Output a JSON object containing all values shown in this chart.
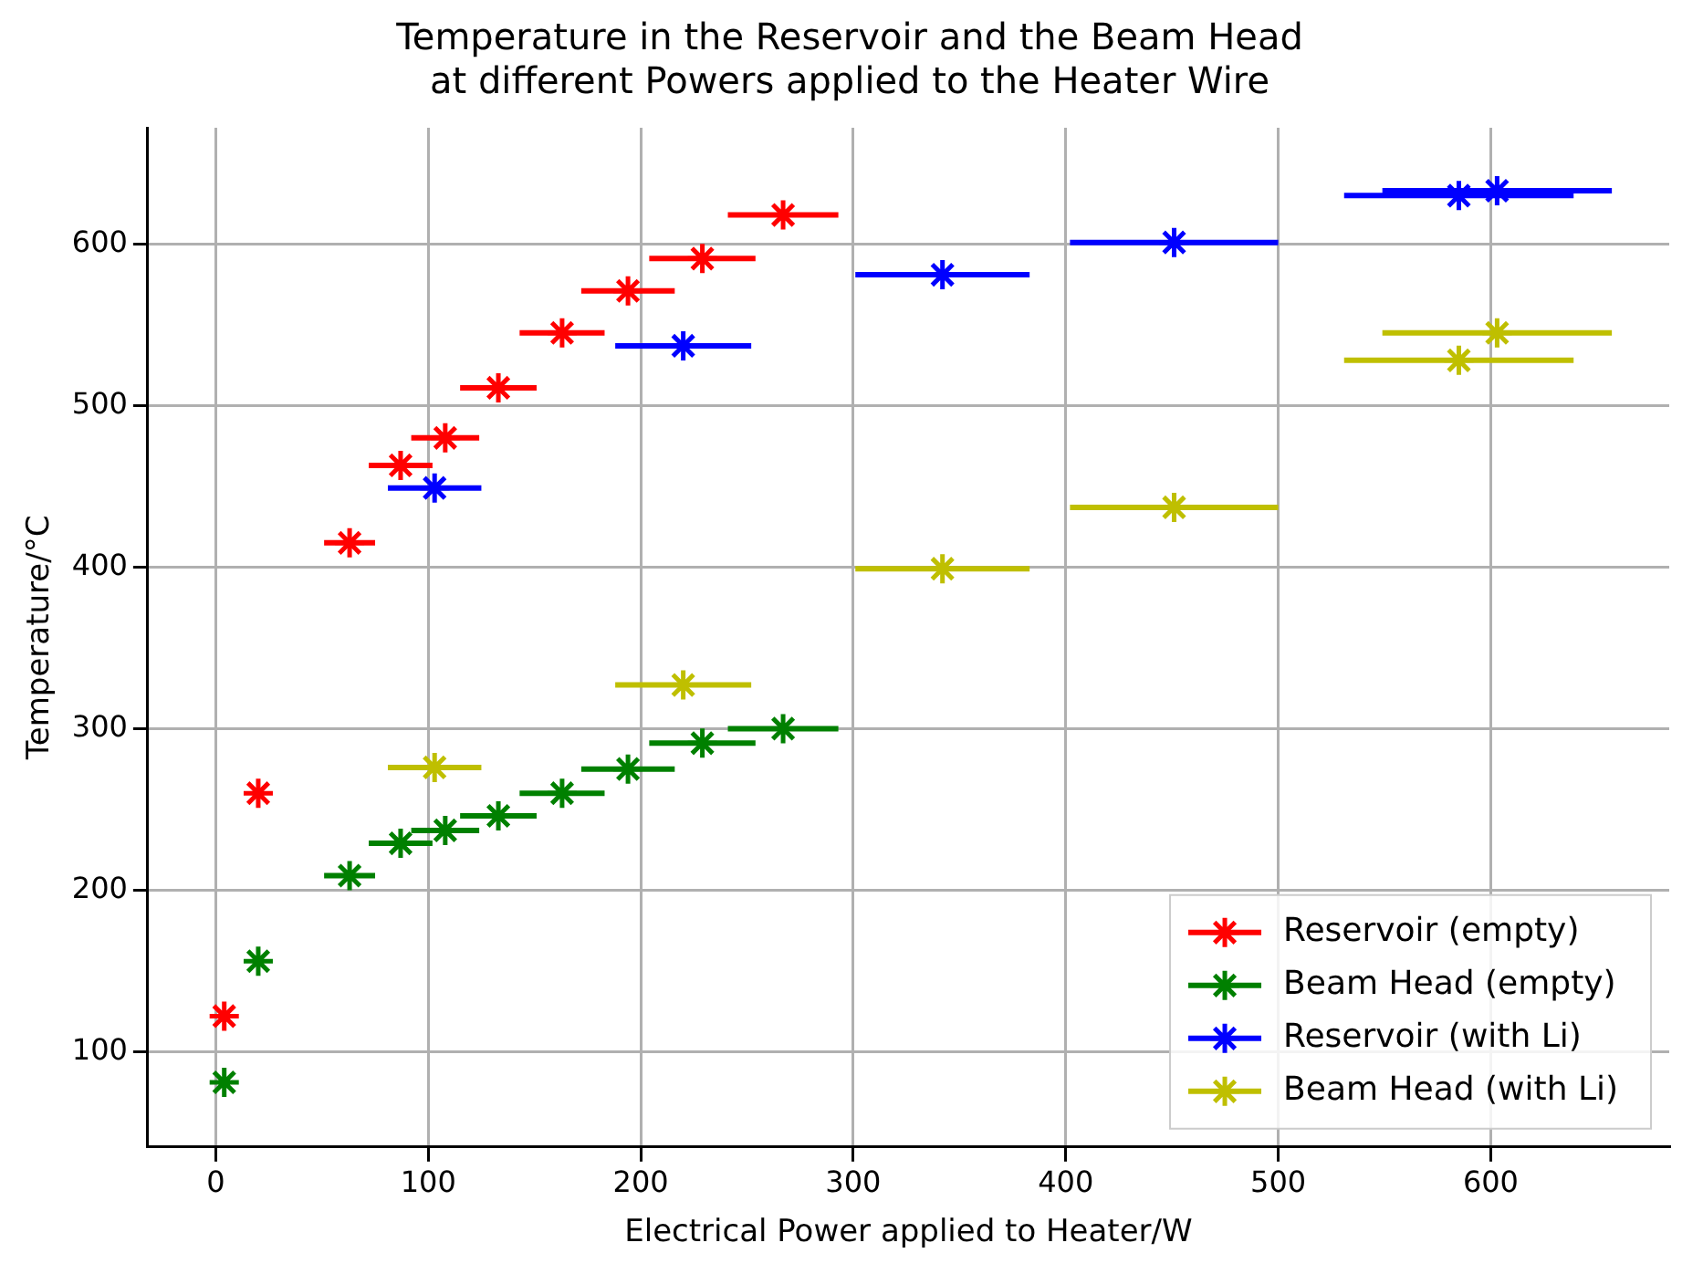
{
  "chart_data": {
    "type": "scatter",
    "title": "Temperature in the Reservoir and the Beam Head\nat different Powers applied to the Heater Wire",
    "xlabel": "Electrical Power applied to Heater/W",
    "ylabel": "Temperature/°C",
    "series": [
      {
        "name": "Reservoir (empty)",
        "color": "#ff0000",
        "x": [
          4,
          20,
          63,
          87,
          108,
          133,
          163,
          194,
          229,
          267
        ],
        "values": [
          122,
          260,
          415,
          463,
          480,
          511,
          545,
          571,
          591,
          618
        ],
        "xerrors": [
          null,
          null,
          12,
          15,
          16,
          18,
          20,
          22,
          25,
          26
        ]
      },
      {
        "name": "Beam Head (empty)",
        "color": "#008000",
        "x": [
          4,
          20,
          63,
          87,
          108,
          133,
          163,
          194,
          229,
          267
        ],
        "values": [
          81,
          156,
          209,
          229,
          237,
          246,
          260,
          275,
          291,
          300
        ],
        "xerrors": [
          null,
          null,
          12,
          15,
          16,
          18,
          20,
          22,
          25,
          26
        ]
      },
      {
        "name": "Reservoir (with Li)",
        "color": "#0000ff",
        "x": [
          103,
          220,
          342,
          451,
          585,
          603
        ],
        "values": [
          449,
          537,
          581,
          601,
          630,
          633
        ],
        "xerrors": [
          22,
          32,
          41,
          49,
          54,
          54
        ]
      },
      {
        "name": "Beam Head (with Li)",
        "color": "#bfbf00",
        "x": [
          103,
          220,
          342,
          451,
          585,
          603
        ],
        "values": [
          276,
          327,
          399,
          437,
          528,
          545
        ],
        "xerrors": [
          22,
          32,
          41,
          49,
          54,
          54
        ]
      }
    ],
    "xlim": [
      -32,
      684
    ],
    "ylim": [
      41,
      672
    ],
    "xticks": [
      0,
      100,
      200,
      300,
      400,
      500,
      600
    ],
    "yticks": [
      100,
      200,
      300,
      400,
      500,
      600
    ],
    "grid": true,
    "legend": "bottom right",
    "marker": "cross"
  }
}
